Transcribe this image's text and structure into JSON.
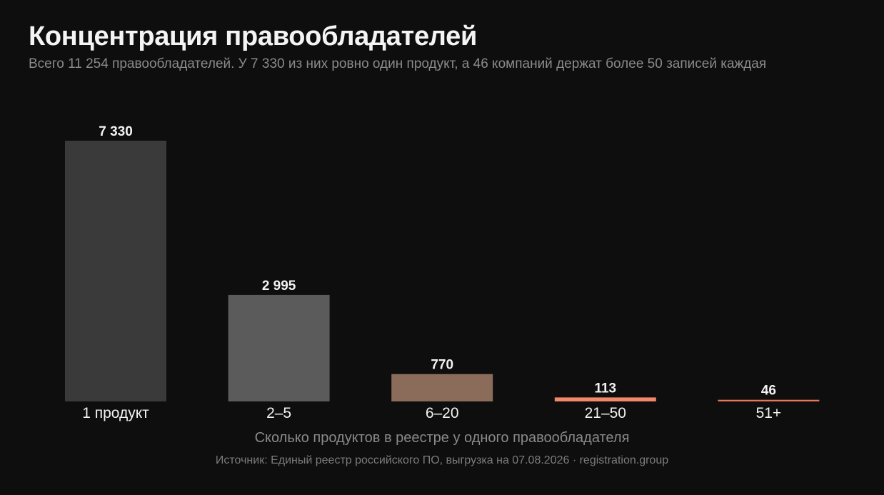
{
  "chart_data": {
    "type": "bar",
    "title": "Концентрация правообладателей",
    "subtitle": "Всего 11 254 правообладателей. У 7 330 из них ровно один продукт, а 46 компаний держат более 50 записей каждая",
    "categories": [
      "1 продукт",
      "2–5",
      "6–20",
      "21–50",
      "51+"
    ],
    "values": [
      7330,
      2995,
      770,
      113,
      46
    ],
    "value_labels": [
      "7 330",
      "2 995",
      "770",
      "113",
      "46"
    ],
    "bar_colors": [
      "#3a3a3a",
      "#5b5b5b",
      "#8b6c5a",
      "#f2876a",
      "#e8745a"
    ],
    "xlabel": "Сколько продуктов в реестре у одного правообладателя",
    "ylabel": "",
    "ylim": [
      0,
      7330
    ],
    "grid": false,
    "legend": "none"
  },
  "footer": {
    "source": "Источник: Единый реестр российского ПО, выгрузка на 07.08.2026  ·  registration.group"
  }
}
